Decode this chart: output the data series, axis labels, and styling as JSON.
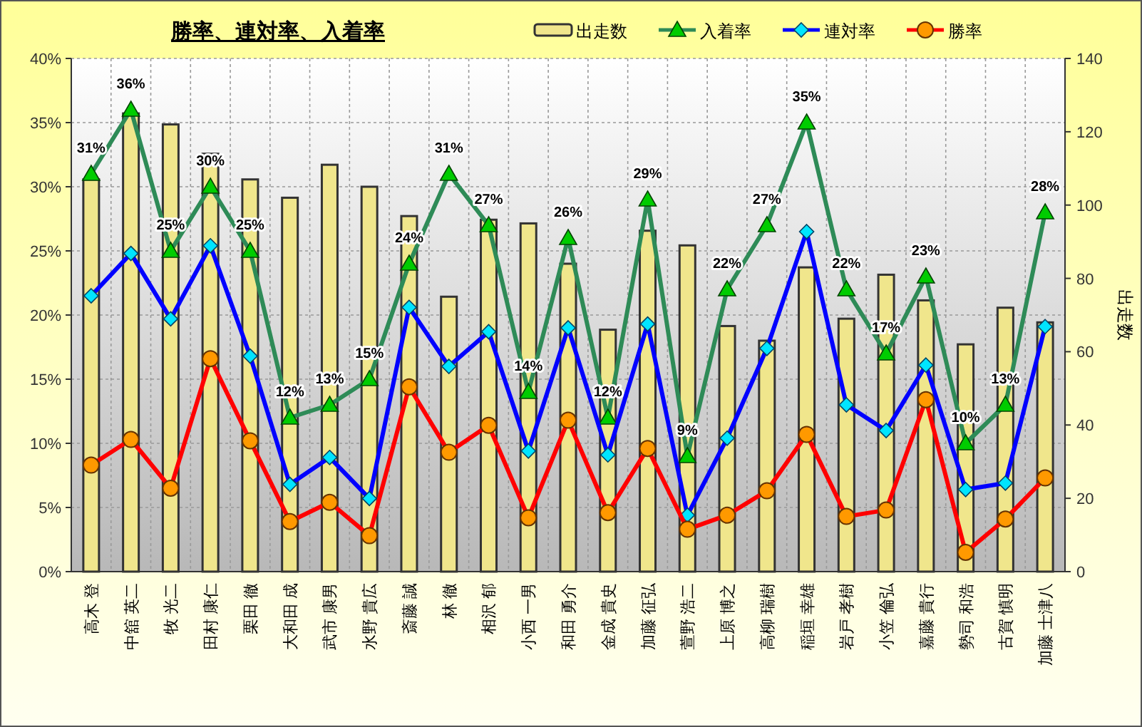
{
  "chart_data": {
    "type": "line",
    "title": "勝率、連対率、入着率",
    "y2label": "出走数",
    "categories": [
      "高木 登",
      "中舘 英二",
      "牧 光二",
      "田村 康仁",
      "栗田 徹",
      "大和田 成",
      "武市 康男",
      "水野 貴広",
      "斎藤 誠",
      "林 徹",
      "相沢 郁",
      "小西 一男",
      "和田 勇介",
      "金成 貴史",
      "加藤 征弘",
      "萱野 浩二",
      "上原 博之",
      "高柳 瑞樹",
      "稲垣 幸雄",
      "岩戸 孝樹",
      "小笠 倫弘",
      "嘉藤 貴行",
      "勢司 和浩",
      "古賀 慎明",
      "加藤 士津八"
    ],
    "series": [
      {
        "name": "出走数",
        "type": "bar",
        "axis": "y2",
        "color": "#f0e68c",
        "values": [
          107,
          125,
          122,
          114,
          107,
          102,
          111,
          105,
          97,
          75,
          96,
          95,
          84,
          66,
          93,
          89,
          67,
          63,
          83,
          69,
          81,
          74,
          62,
          72,
          68
        ]
      },
      {
        "name": "入着率",
        "color": "#2e8b57",
        "marker": "triangle",
        "values": [
          31,
          36,
          25,
          30,
          25,
          12,
          13,
          15,
          24,
          31,
          27,
          14,
          26,
          12,
          29,
          9,
          22,
          27,
          35,
          22,
          17,
          23,
          10,
          13,
          28
        ],
        "value_labels": [
          "31%",
          "36%",
          "25%",
          "30%",
          "25%",
          "12%",
          "13%",
          "15%",
          "24%",
          "31%",
          "27%",
          "14%",
          "26%",
          "12%",
          "29%",
          "9%",
          "22%",
          "27%",
          "35%",
          "22%",
          "17%",
          "23%",
          "10%",
          "13%",
          "28%"
        ]
      },
      {
        "name": "連対率",
        "color": "#0000ff",
        "marker": "diamond",
        "values": [
          21.5,
          24.8,
          19.7,
          25.4,
          16.8,
          6.8,
          8.9,
          5.7,
          20.6,
          16.0,
          18.7,
          9.4,
          19.0,
          9.1,
          19.3,
          4.4,
          10.4,
          17.4,
          26.5,
          13.0,
          11.0,
          16.1,
          6.4,
          6.9,
          19.1
        ]
      },
      {
        "name": "勝率",
        "color": "#ff0000",
        "marker": "circle",
        "values": [
          8.3,
          10.3,
          6.5,
          16.6,
          10.2,
          3.9,
          5.4,
          2.8,
          14.4,
          9.3,
          11.4,
          4.2,
          11.8,
          4.6,
          9.6,
          3.3,
          4.4,
          6.3,
          10.7,
          4.3,
          4.8,
          13.4,
          1.5,
          4.1,
          7.3
        ]
      }
    ],
    "ylim": [
      0,
      40
    ],
    "yticks": [
      {
        "value": 0,
        "label": "0%"
      },
      {
        "value": 5,
        "label": "5%"
      },
      {
        "value": 10,
        "label": "10%"
      },
      {
        "value": 15,
        "label": "15%"
      },
      {
        "value": 20,
        "label": "20%"
      },
      {
        "value": 25,
        "label": "25%"
      },
      {
        "value": 30,
        "label": "30%"
      },
      {
        "value": 35,
        "label": "35%"
      },
      {
        "value": 40,
        "label": "40%"
      }
    ],
    "y2lim": [
      0,
      140
    ],
    "y2ticks": [
      0,
      20,
      40,
      60,
      80,
      100,
      120,
      140
    ],
    "grid": true,
    "legend": "top"
  }
}
